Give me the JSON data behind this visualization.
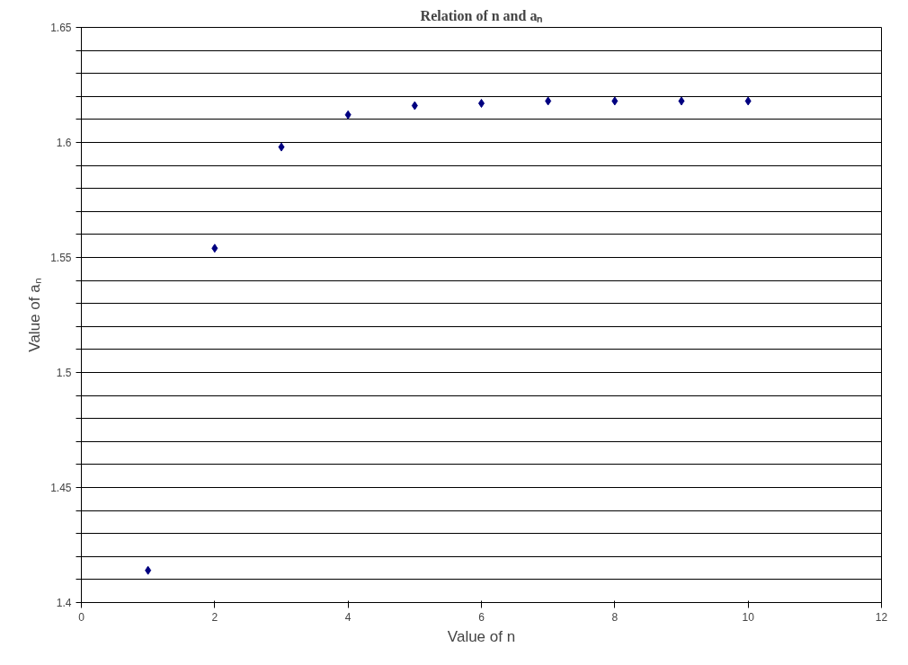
{
  "chart_data": {
    "type": "scatter",
    "title": "Relation of n and aₙ",
    "xlabel": "Value of n",
    "ylabel": "Value of aₙ",
    "x": [
      1,
      2,
      3,
      4,
      5,
      6,
      7,
      8,
      9,
      10
    ],
    "series": [
      {
        "color": "#000080",
        "values": [
          1.414,
          1.554,
          1.598,
          1.612,
          1.616,
          1.617,
          1.618,
          1.618,
          1.618,
          1.618
        ]
      }
    ],
    "xlim": [
      0,
      12
    ],
    "xticks": [
      0,
      2,
      4,
      6,
      8,
      10,
      12
    ],
    "ylim": [
      1.4,
      1.65
    ],
    "yticks": [
      1.4,
      {
        "value": 1.41,
        "label": null
      },
      {
        "value": 1.42,
        "label": null
      },
      {
        "value": 1.43,
        "label": null
      },
      {
        "value": 1.44,
        "label": null
      },
      1.45,
      {
        "value": 1.46,
        "label": null
      },
      {
        "value": 1.47,
        "label": null
      },
      {
        "value": 1.48,
        "label": null
      },
      {
        "value": 1.49,
        "label": null
      },
      1.5,
      {
        "value": 1.51,
        "label": null
      },
      {
        "value": 1.52,
        "label": null
      },
      {
        "value": 1.53,
        "label": null
      },
      {
        "value": 1.54,
        "label": null
      },
      1.55,
      {
        "value": 1.56,
        "label": null
      },
      {
        "value": 1.57,
        "label": null
      },
      {
        "value": 1.58,
        "label": null
      },
      {
        "value": 1.59,
        "label": null
      },
      1.6,
      {
        "value": 1.61,
        "label": null
      },
      {
        "value": 1.62,
        "label": null
      },
      {
        "value": 1.63,
        "label": null
      },
      {
        "value": 1.64,
        "label": null
      },
      1.65
    ],
    "grid": "y",
    "marker": "diamond"
  }
}
